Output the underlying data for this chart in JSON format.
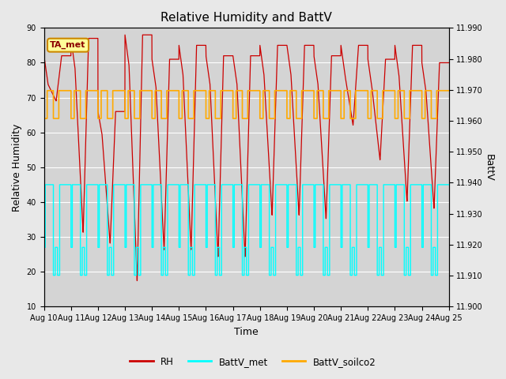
{
  "title": "Relative Humidity and BattV",
  "xlabel": "Time",
  "ylabel_left": "Relative Humidity",
  "ylabel_right": "BattV",
  "annotation": "TA_met",
  "ylim_left": [
    10,
    90
  ],
  "ylim_right": [
    11.9,
    11.99
  ],
  "yticks_left": [
    10,
    20,
    30,
    40,
    50,
    60,
    70,
    80,
    90
  ],
  "yticks_right": [
    11.9,
    11.91,
    11.92,
    11.93,
    11.94,
    11.95,
    11.96,
    11.97,
    11.98,
    11.99
  ],
  "xtick_labels": [
    "Aug 10",
    "Aug 11",
    "Aug 12",
    "Aug 13",
    "Aug 14",
    "Aug 15",
    "Aug 16",
    "Aug 17",
    "Aug 18",
    "Aug 19",
    "Aug 20",
    "Aug 21",
    "Aug 22",
    "Aug 23",
    "Aug 24",
    "Aug 25"
  ],
  "rh_color": "#cc0000",
  "battv_met_color": "#00ffff",
  "battv_soilco2_color": "#ffaa00",
  "background_color": "#e8e8e8",
  "plot_bg_color": "#d4d4d4",
  "legend_rh": "RH",
  "legend_battv_met": "BattV_met",
  "legend_battv_soilco2": "BattV_soilco2",
  "num_days": 15,
  "rh_day_peaks": [
    82,
    87,
    66,
    88,
    81,
    85,
    82,
    82,
    85,
    85,
    82,
    85,
    81,
    85,
    80
  ],
  "rh_day_mins": [
    69,
    31,
    28,
    17,
    26,
    26,
    24,
    24,
    36,
    36,
    35,
    62,
    52,
    40,
    38
  ],
  "battv_met_high": 45,
  "battv_met_mid": 27,
  "battv_met_low": 19,
  "battv_soilco2_high": 72,
  "battv_soilco2_low": 64
}
